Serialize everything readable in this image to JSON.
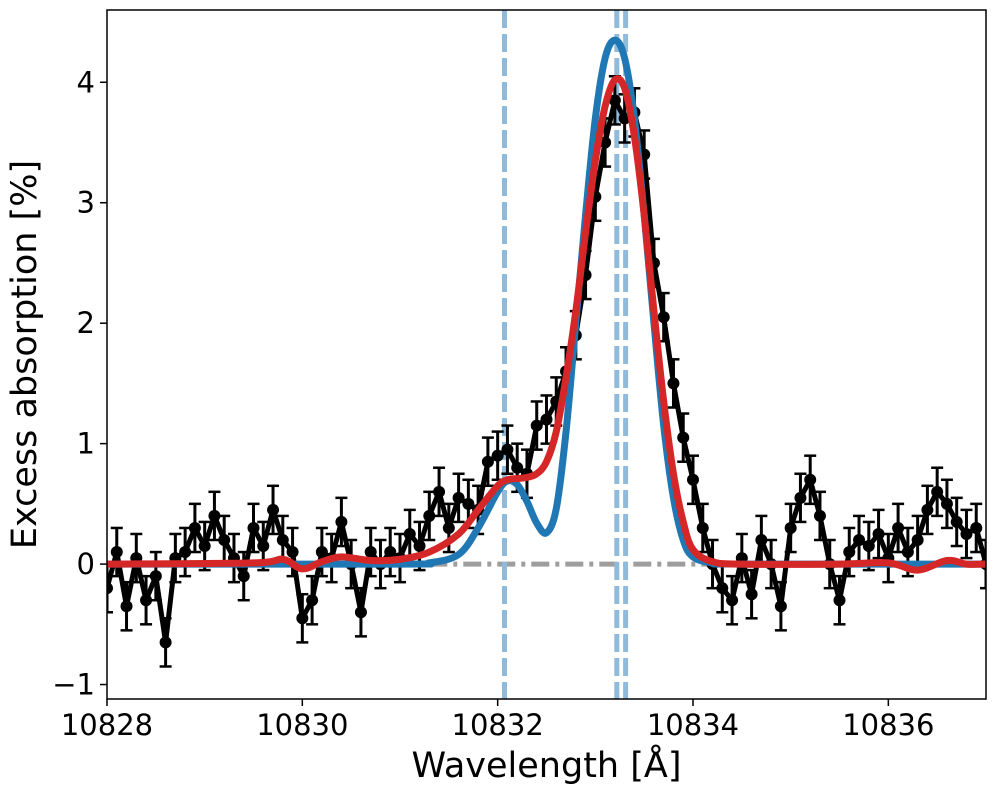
{
  "chart_data": {
    "type": "line",
    "title": "",
    "xlabel": "Wavelength [Å]",
    "ylabel": "Excess absorption [%]",
    "xlim": [
      10828,
      10837
    ],
    "ylim": [
      -1.12,
      4.6
    ],
    "x_ticks": [
      10828,
      10830,
      10832,
      10834,
      10836
    ],
    "y_ticks": [
      -1,
      0,
      1,
      2,
      3,
      4
    ],
    "y_tick_labels": [
      "−1",
      "0",
      "1",
      "2",
      "3",
      "4"
    ],
    "legend": "none",
    "grid": false,
    "vertical_lines": {
      "x": [
        10832.07,
        10833.22,
        10833.31
      ],
      "style": "dashed",
      "color": "#8fbad9"
    },
    "baseline": {
      "y": 0,
      "x_range": [
        10831.3,
        10834.2
      ],
      "style": "dash-dot",
      "color": "#9e9e9e"
    },
    "colors": {
      "data": "#000000",
      "model_blue": "#1f77b4",
      "model_red": "#d62728"
    },
    "series": [
      {
        "type": "errorbar",
        "color": "#000000",
        "x": [
          10828.0,
          10828.1,
          10828.2,
          10828.3,
          10828.4,
          10828.5,
          10828.6,
          10828.7,
          10828.8,
          10828.9,
          10829.0,
          10829.1,
          10829.2,
          10829.3,
          10829.4,
          10829.5,
          10829.6,
          10829.7,
          10829.8,
          10829.9,
          10830.0,
          10830.1,
          10830.2,
          10830.3,
          10830.4,
          10830.5,
          10830.6,
          10830.7,
          10830.8,
          10830.9,
          10831.0,
          10831.1,
          10831.2,
          10831.3,
          10831.4,
          10831.5,
          10831.6,
          10831.7,
          10831.8,
          10831.9,
          10832.0,
          10832.1,
          10832.2,
          10832.3,
          10832.4,
          10832.5,
          10832.6,
          10832.7,
          10832.8,
          10832.9,
          10833.0,
          10833.1,
          10833.2,
          10833.3,
          10833.4,
          10833.5,
          10833.6,
          10833.7,
          10833.8,
          10833.9,
          10834.0,
          10834.1,
          10834.2,
          10834.3,
          10834.4,
          10834.5,
          10834.6,
          10834.7,
          10834.8,
          10834.9,
          10835.0,
          10835.1,
          10835.2,
          10835.3,
          10835.4,
          10835.5,
          10835.6,
          10835.7,
          10835.8,
          10835.9,
          10836.0,
          10836.1,
          10836.2,
          10836.3,
          10836.4,
          10836.5,
          10836.6,
          10836.7,
          10836.8,
          10836.9,
          10837.0
        ],
        "y": [
          -0.2,
          0.1,
          -0.35,
          0.05,
          -0.3,
          -0.1,
          -0.65,
          0.05,
          0.1,
          0.3,
          0.15,
          0.4,
          0.2,
          0.05,
          -0.1,
          0.3,
          0.15,
          0.45,
          0.2,
          0.1,
          -0.45,
          -0.3,
          0.1,
          0.05,
          0.35,
          0.0,
          -0.4,
          0.1,
          0.0,
          0.1,
          0.05,
          0.25,
          0.15,
          0.4,
          0.6,
          0.3,
          0.55,
          0.5,
          0.45,
          0.85,
          0.9,
          0.95,
          0.8,
          0.75,
          1.15,
          1.2,
          1.35,
          1.6,
          1.9,
          2.4,
          3.05,
          3.5,
          3.85,
          3.7,
          3.75,
          3.4,
          2.5,
          2.05,
          1.5,
          1.05,
          0.7,
          0.3,
          0.0,
          -0.2,
          -0.3,
          0.05,
          -0.25,
          0.2,
          0.0,
          -0.35,
          0.3,
          0.55,
          0.7,
          0.4,
          0.0,
          -0.3,
          0.1,
          0.2,
          0.15,
          0.25,
          0.05,
          0.3,
          0.1,
          0.2,
          0.45,
          0.6,
          0.5,
          0.35,
          0.25,
          0.3,
          0.0
        ],
        "yerr": 0.2
      },
      {
        "type": "line",
        "color": "#1f77b4",
        "x": [
          10828.0,
          10831.0,
          10831.3,
          10831.6,
          10831.8,
          10832.0,
          10832.1,
          10832.2,
          10832.3,
          10832.4,
          10832.5,
          10832.6,
          10832.7,
          10832.8,
          10832.9,
          10833.0,
          10833.1,
          10833.2,
          10833.3,
          10833.4,
          10833.5,
          10833.6,
          10833.7,
          10833.8,
          10833.9,
          10834.0,
          10834.2,
          10834.5,
          10837.0
        ],
        "y": [
          0.0,
          0.0,
          0.01,
          0.08,
          0.3,
          0.6,
          0.69,
          0.66,
          0.52,
          0.34,
          0.26,
          0.46,
          1.1,
          2.0,
          2.9,
          3.7,
          4.2,
          4.35,
          4.2,
          3.7,
          2.9,
          2.0,
          1.15,
          0.55,
          0.2,
          0.06,
          0.01,
          0.0,
          0.0
        ]
      },
      {
        "type": "line",
        "color": "#d62728",
        "x": [
          10828.0,
          10829.5,
          10829.8,
          10830.0,
          10830.2,
          10830.4,
          10830.7,
          10831.0,
          10831.3,
          10831.6,
          10831.8,
          10832.0,
          10832.1,
          10832.2,
          10832.3,
          10832.4,
          10832.5,
          10832.6,
          10832.7,
          10832.8,
          10832.9,
          10833.0,
          10833.1,
          10833.2,
          10833.3,
          10833.4,
          10833.5,
          10833.6,
          10833.7,
          10833.8,
          10833.9,
          10834.0,
          10834.2,
          10834.5,
          10835.5,
          10836.0,
          10836.3,
          10836.6,
          10836.8,
          10837.0
        ],
        "y": [
          0.0,
          0.01,
          0.04,
          -0.04,
          0.02,
          0.06,
          0.03,
          0.04,
          0.1,
          0.25,
          0.45,
          0.65,
          0.7,
          0.71,
          0.72,
          0.75,
          0.85,
          1.1,
          1.55,
          2.1,
          2.75,
          3.35,
          3.8,
          4.02,
          3.95,
          3.55,
          2.9,
          2.1,
          1.35,
          0.75,
          0.35,
          0.12,
          0.02,
          0.0,
          0.0,
          0.01,
          -0.05,
          0.03,
          0.0,
          0.0
        ]
      }
    ]
  }
}
